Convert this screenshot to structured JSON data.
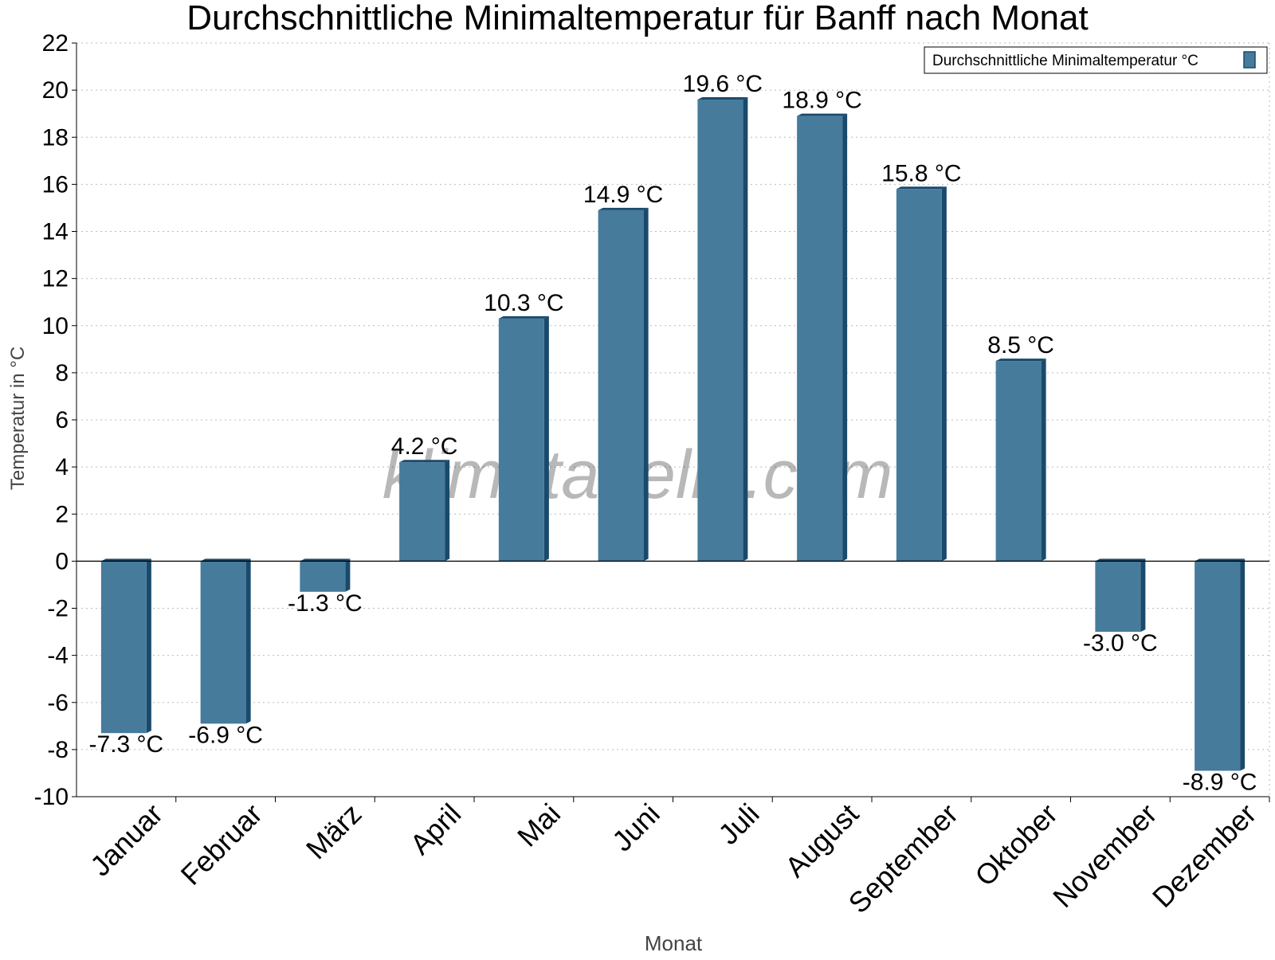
{
  "chart_data": {
    "type": "bar",
    "title": "Durchschnittliche Minimaltemperatur für Banff nach Monat",
    "xlabel": "Monat",
    "ylabel": "Temperatur in °C",
    "categories": [
      "Januar",
      "Februar",
      "März",
      "April",
      "Mai",
      "Juni",
      "Juli",
      "August",
      "September",
      "Oktober",
      "November",
      "Dezember"
    ],
    "series": [
      {
        "name": "Durchschnittliche Minimaltemperatur °C",
        "values": [
          -7.3,
          -6.9,
          -1.3,
          4.2,
          10.3,
          14.9,
          19.6,
          18.9,
          15.8,
          8.5,
          -3.0,
          -8.9
        ],
        "data_labels": [
          "-7.3 °C",
          "-6.9 °C",
          "-1.3 °C",
          "4.2 °C",
          "10.3 °C",
          "14.9 °C",
          "19.6 °C",
          "18.9 °C",
          "15.8 °C",
          "8.5 °C",
          "-3.0 °C",
          "-8.9 °C"
        ]
      }
    ],
    "ylim": [
      -10,
      22
    ],
    "yticks": [
      22,
      20,
      18,
      16,
      14,
      12,
      10,
      8,
      6,
      4,
      2,
      0,
      -2,
      -4,
      -6,
      -8,
      -10
    ],
    "grid": true,
    "legend_position": "top-right",
    "watermark": "klimatabelle.com",
    "colors": {
      "bar": "#467b9b",
      "bar_side": "#1a4a6b",
      "grid": "#bbbbbb",
      "axis": "#000000",
      "axis_label": "#444444",
      "watermark": "rgba(0,0,0,0.28)"
    }
  }
}
